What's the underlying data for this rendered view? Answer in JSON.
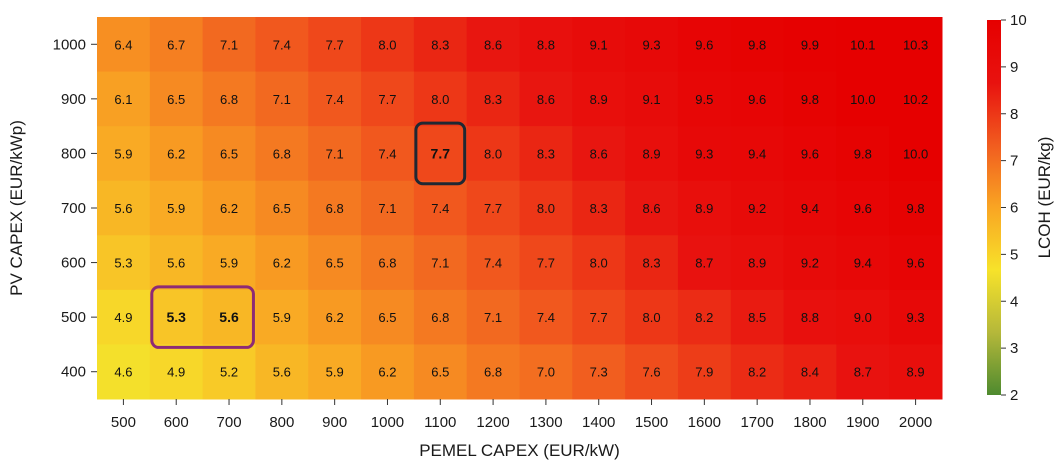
{
  "chart_data": {
    "type": "heatmap",
    "xlabel": "PEMEL CAPEX (EUR/kW)",
    "ylabel": "PV CAPEX (EUR/kWp)",
    "colorbar_label": "LCOH (EUR/kg)",
    "x": [
      "500",
      "600",
      "700",
      "800",
      "900",
      "1000",
      "1100",
      "1200",
      "1300",
      "1400",
      "1500",
      "1600",
      "1700",
      "1800",
      "1900",
      "2000"
    ],
    "y": [
      "1000",
      "900",
      "800",
      "700",
      "600",
      "500",
      "400"
    ],
    "values": [
      [
        6.4,
        6.7,
        7.1,
        7.4,
        7.7,
        8.0,
        8.3,
        8.6,
        8.8,
        9.1,
        9.3,
        9.6,
        9.8,
        9.9,
        10.1,
        10.3
      ],
      [
        6.1,
        6.5,
        6.8,
        7.1,
        7.4,
        7.7,
        8.0,
        8.3,
        8.6,
        8.9,
        9.1,
        9.5,
        9.6,
        9.8,
        10.0,
        10.2
      ],
      [
        5.9,
        6.2,
        6.5,
        6.8,
        7.1,
        7.4,
        7.7,
        8.0,
        8.3,
        8.6,
        8.9,
        9.3,
        9.4,
        9.6,
        9.8,
        10.0
      ],
      [
        5.6,
        5.9,
        6.2,
        6.5,
        6.8,
        7.1,
        7.4,
        7.7,
        8.0,
        8.3,
        8.6,
        8.9,
        9.2,
        9.4,
        9.6,
        9.8
      ],
      [
        5.3,
        5.6,
        5.9,
        6.2,
        6.5,
        6.8,
        7.1,
        7.4,
        7.7,
        8.0,
        8.3,
        8.7,
        8.9,
        9.2,
        9.4,
        9.6
      ],
      [
        4.9,
        5.3,
        5.6,
        5.9,
        6.2,
        6.5,
        6.8,
        7.1,
        7.4,
        7.7,
        8.0,
        8.2,
        8.5,
        8.8,
        9.0,
        9.3
      ],
      [
        4.6,
        4.9,
        5.2,
        5.6,
        5.9,
        6.2,
        6.5,
        6.8,
        7.0,
        7.3,
        7.6,
        7.9,
        8.2,
        8.4,
        8.7,
        8.9
      ]
    ],
    "color_range": [
      2,
      10
    ],
    "colorbar_ticks": [
      "10",
      "9",
      "8",
      "7",
      "6",
      "5",
      "4",
      "3",
      "2"
    ],
    "colormap": [
      "#4e8a2f",
      "#b5b83a",
      "#f7e22a",
      "#f9a523",
      "#f15c1f",
      "#e8120f",
      "#e60000"
    ],
    "highlights": [
      {
        "rows": [
          2
        ],
        "cols": [
          6
        ],
        "color": "#1f2833"
      },
      {
        "rows": [
          5
        ],
        "cols": [
          1,
          2
        ],
        "color": "#8e2a75"
      }
    ],
    "bold_cells": [
      [
        2,
        6
      ],
      [
        5,
        1
      ],
      [
        5,
        2
      ]
    ],
    "grid": false,
    "legend": "colorbar-right"
  }
}
